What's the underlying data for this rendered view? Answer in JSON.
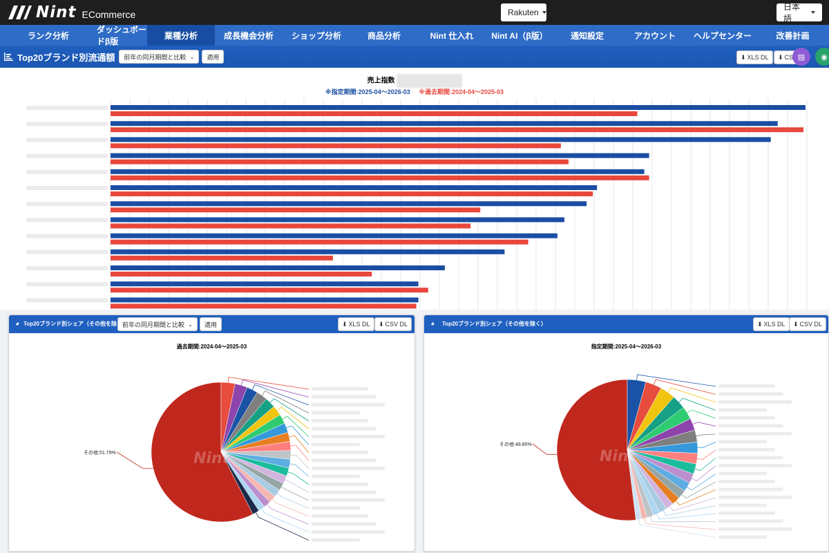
{
  "app": {
    "logo_word": "Nint",
    "logo_sub": "ECommerce"
  },
  "topbar": {
    "marketplace": "Rakuten",
    "language": "日本語"
  },
  "nav": [
    {
      "label": "ランク分析",
      "active": false
    },
    {
      "label": "ダッシュボードβ版",
      "active": false
    },
    {
      "label": "業種分析",
      "active": true
    },
    {
      "label": "成長機会分析",
      "active": false
    },
    {
      "label": "ショップ分析",
      "active": false
    },
    {
      "label": "商品分析",
      "active": false
    },
    {
      "label": "Nint 仕入れ",
      "active": false
    },
    {
      "label": "Nint AI（β版）",
      "active": false
    },
    {
      "label": "通知設定",
      "active": false
    },
    {
      "label": "アカウント",
      "active": false
    },
    {
      "label": "ヘルプセンター",
      "active": false
    },
    {
      "label": "改善計画",
      "active": false
    }
  ],
  "main_panel": {
    "title": "Top20ブランド別流通額",
    "compare_select": "前年の同月期間と比較",
    "apply": "適用",
    "xls": "XLS DL",
    "csv": "CS"
  },
  "chart_data": [
    {
      "type": "bar",
      "title": "売上指数",
      "current_label": "※指定期間:2025-04～2026-03",
      "past_label": "※過去期間:2024-04～2025-03",
      "colors": {
        "current": "#1b4ea3",
        "past": "#e8473e"
      },
      "orientation": "horizontal",
      "series": [
        {
          "values": [
            1.0,
            0.96,
            0.95,
            0.775,
            0.768,
            0.7,
            0.685,
            0.653,
            0.643,
            0.567,
            0.481,
            0.443,
            0.443
          ]
        },
        {
          "values": [
            0.758,
            0.997,
            0.648,
            0.659,
            0.775,
            0.694,
            0.532,
            0.518,
            0.601,
            0.32,
            0.376,
            0.457,
            0.44
          ]
        }
      ],
      "grid": true
    },
    {
      "type": "pie",
      "title": "過去期間:2024-04～2025-03",
      "visible_label": "その他:51.79%",
      "values": [
        51.79,
        2.9,
        2.6,
        2.3,
        2.3,
        2.2,
        2.1,
        2.0,
        2.0,
        1.9,
        1.9,
        1.8,
        1.8,
        1.7,
        1.7,
        1.6,
        1.6,
        1.5,
        1.5,
        1.4,
        1.4
      ],
      "colors": [
        "#c0281d",
        "#e74c3c",
        "#8e44ad",
        "#1a53a6",
        "#7f7f7f",
        "#16a085",
        "#f1c40f",
        "#2ecc71",
        "#3498db",
        "#e67e22",
        "#ff7f7f",
        "#bdc3c7",
        "#5dade2",
        "#1abc9c",
        "#d2b4de",
        "#95a5a6",
        "#a9cce3",
        "#f5b7b1",
        "#bb8fce",
        "#aed6f1",
        "#1b2a4a"
      ]
    },
    {
      "type": "pie",
      "title": "指定期間:2025-04～2026-03",
      "visible_label": "その他:48.85%",
      "values": [
        48.85,
        4.0,
        3.5,
        3.3,
        3.0,
        2.8,
        2.6,
        2.6,
        2.4,
        2.3,
        2.2,
        2.1,
        2.0,
        1.9,
        1.8,
        1.7,
        1.6,
        1.5,
        1.4,
        1.2,
        1.25
      ],
      "colors": [
        "#c0281d",
        "#1a53a6",
        "#e74c3c",
        "#f1c40f",
        "#16a085",
        "#2ecc71",
        "#8e44ad",
        "#7f7f7f",
        "#3498db",
        "#ff7f7f",
        "#1abc9c",
        "#bb8fce",
        "#5dade2",
        "#95a5a6",
        "#e67e22",
        "#d2b4de",
        "#a9cce3",
        "#aed6f1",
        "#bdc3c7",
        "#f5b7b1",
        "#cfe2f3"
      ]
    }
  ],
  "left_panel": {
    "title": "Top20ブランド別シェア（その他を除く）",
    "compare_select": "前年の同月期間と比較",
    "apply": "適用",
    "xls": "XLS DL",
    "csv": "CSV DL"
  },
  "right_panel": {
    "title": "Top20ブランド別シェア（その他を除く）",
    "xls": "XLS DL",
    "csv": "CSV DL"
  }
}
